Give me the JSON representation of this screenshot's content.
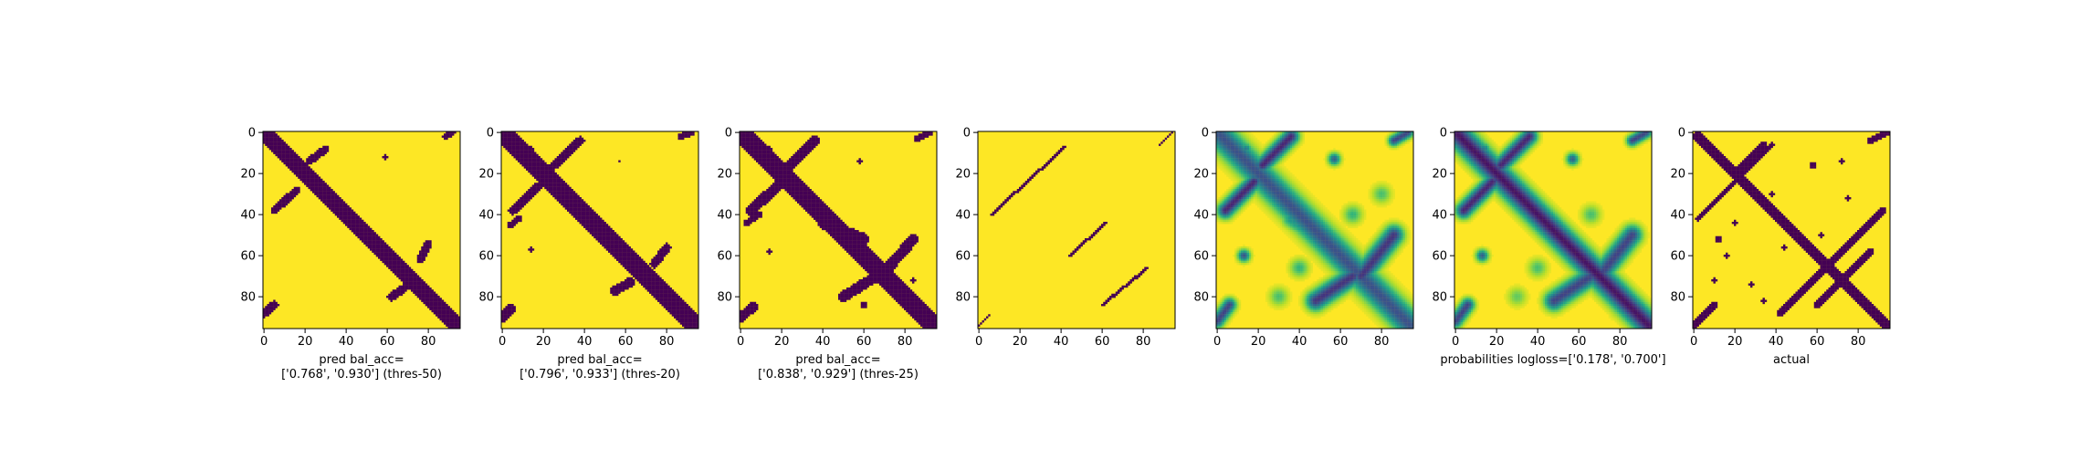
{
  "chart_data": [
    {
      "type": "heatmap",
      "panel": "pred-50",
      "style": "binary",
      "xlabel": "pred bal_acc=\n['0.768', '0.930'] (thres-50)",
      "xticks": [
        0,
        20,
        40,
        60,
        80
      ],
      "yticks": [
        0,
        20,
        40,
        60,
        80
      ],
      "range": [
        0,
        95
      ],
      "features": [
        {
          "kind": "band",
          "x1": 2,
          "y1": 2,
          "x2": 94,
          "y2": 94,
          "w": 3.2,
          "strength": 1
        },
        {
          "kind": "band",
          "x1": 22,
          "y1": 14,
          "x2": 30,
          "y2": 8,
          "w": 1.6,
          "strength": 1
        },
        {
          "kind": "band",
          "x1": 5,
          "y1": 38,
          "x2": 16,
          "y2": 28,
          "w": 1.6,
          "strength": 1
        },
        {
          "kind": "band",
          "x1": 88,
          "y1": 2,
          "x2": 92,
          "y2": 0,
          "w": 1.2,
          "strength": 1
        },
        {
          "kind": "band",
          "x1": 62,
          "y1": 80,
          "x2": 68,
          "y2": 76,
          "w": 1.8,
          "strength": 1
        },
        {
          "kind": "band",
          "x1": 76,
          "y1": 62,
          "x2": 80,
          "y2": 54,
          "w": 1.6,
          "strength": 1
        },
        {
          "kind": "band",
          "x1": 0,
          "y1": 88,
          "x2": 5,
          "y2": 84,
          "w": 1.8,
          "strength": 1
        },
        {
          "kind": "blob",
          "x": 12,
          "y": 8,
          "r": 1.0,
          "strength": 1
        },
        {
          "kind": "blob",
          "x": 59,
          "y": 12,
          "r": 0.9,
          "strength": 1
        }
      ]
    },
    {
      "type": "heatmap",
      "panel": "pred-20",
      "style": "binary",
      "xlabel": "pred bal_acc=\n['0.796', '0.933'] (thres-20)",
      "xticks": [
        0,
        20,
        40,
        60,
        80
      ],
      "yticks": [
        0,
        20,
        40,
        60,
        80
      ],
      "range": [
        0,
        95
      ],
      "features": [
        {
          "kind": "band",
          "x1": 2,
          "y1": 2,
          "x2": 94,
          "y2": 94,
          "w": 3.8,
          "strength": 1
        },
        {
          "kind": "band",
          "x1": 25,
          "y1": 16,
          "x2": 38,
          "y2": 4,
          "w": 1.8,
          "strength": 1
        },
        {
          "kind": "band",
          "x1": 5,
          "y1": 38,
          "x2": 18,
          "y2": 26,
          "w": 1.8,
          "strength": 1
        },
        {
          "kind": "band",
          "x1": 4,
          "y1": 45,
          "x2": 8,
          "y2": 42,
          "w": 1.3,
          "strength": 1
        },
        {
          "kind": "band",
          "x1": 87,
          "y1": 2,
          "x2": 92,
          "y2": 0,
          "w": 1.3,
          "strength": 1
        },
        {
          "kind": "band",
          "x1": 55,
          "y1": 77,
          "x2": 62,
          "y2": 73,
          "w": 1.9,
          "strength": 1
        },
        {
          "kind": "band",
          "x1": 74,
          "y1": 64,
          "x2": 80,
          "y2": 56,
          "w": 1.8,
          "strength": 1
        },
        {
          "kind": "band",
          "x1": 0,
          "y1": 90,
          "x2": 4,
          "y2": 86,
          "w": 1.9,
          "strength": 1
        },
        {
          "kind": "blob",
          "x": 14,
          "y": 8,
          "r": 1.0,
          "strength": 1
        },
        {
          "kind": "blob",
          "x": 57,
          "y": 14,
          "r": 0.8,
          "strength": 1
        },
        {
          "kind": "blob",
          "x": 14,
          "y": 57,
          "r": 1.0,
          "strength": 1
        }
      ]
    },
    {
      "type": "heatmap",
      "panel": "pred-25",
      "style": "binary",
      "xlabel": "pred bal_acc=\n['0.838', '0.929'] (thres-25)",
      "xticks": [
        0,
        20,
        40,
        60,
        80
      ],
      "yticks": [
        0,
        20,
        40,
        60,
        80
      ],
      "range": [
        0,
        95
      ],
      "features": [
        {
          "kind": "band",
          "x1": 2,
          "y1": 2,
          "x2": 94,
          "y2": 94,
          "w": 4.2,
          "strength": 1
        },
        {
          "kind": "band",
          "x1": 24,
          "y1": 16,
          "x2": 36,
          "y2": 4,
          "w": 2.0,
          "strength": 1
        },
        {
          "kind": "band",
          "x1": 5,
          "y1": 38,
          "x2": 18,
          "y2": 26,
          "w": 2.2,
          "strength": 1
        },
        {
          "kind": "band",
          "x1": 3,
          "y1": 44,
          "x2": 9,
          "y2": 40,
          "w": 1.4,
          "strength": 1
        },
        {
          "kind": "band",
          "x1": 86,
          "y1": 3,
          "x2": 92,
          "y2": 0,
          "w": 1.4,
          "strength": 1
        },
        {
          "kind": "band",
          "x1": 50,
          "y1": 80,
          "x2": 66,
          "y2": 70,
          "w": 2.2,
          "strength": 1
        },
        {
          "kind": "band",
          "x1": 70,
          "y1": 68,
          "x2": 84,
          "y2": 52,
          "w": 2.2,
          "strength": 1
        },
        {
          "kind": "band",
          "x1": 40,
          "y1": 44,
          "x2": 60,
          "y2": 52,
          "w": 2.4,
          "strength": 1
        },
        {
          "kind": "band",
          "x1": 0,
          "y1": 90,
          "x2": 6,
          "y2": 85,
          "w": 2.0,
          "strength": 1
        },
        {
          "kind": "blob",
          "x": 14,
          "y": 8,
          "r": 1.1,
          "strength": 1
        },
        {
          "kind": "blob",
          "x": 58,
          "y": 14,
          "r": 1.0,
          "strength": 1
        },
        {
          "kind": "blob",
          "x": 14,
          "y": 58,
          "r": 1.2,
          "strength": 1
        },
        {
          "kind": "blob",
          "x": 60,
          "y": 84,
          "r": 1.4,
          "strength": 1
        },
        {
          "kind": "blob",
          "x": 84,
          "y": 72,
          "r": 1.2,
          "strength": 1
        }
      ]
    },
    {
      "type": "heatmap",
      "panel": "sparse",
      "style": "binary",
      "xlabel": "",
      "xticks": [
        0,
        20,
        40,
        60,
        80
      ],
      "yticks": [
        0,
        20,
        40,
        60,
        80
      ],
      "range": [
        0,
        95
      ],
      "features": [
        {
          "kind": "band",
          "x1": 6,
          "y1": 40,
          "x2": 42,
          "y2": 7,
          "w": 0.6,
          "strength": 1
        },
        {
          "kind": "band",
          "x1": 44,
          "y1": 60,
          "x2": 62,
          "y2": 44,
          "w": 0.6,
          "strength": 1
        },
        {
          "kind": "band",
          "x1": 60,
          "y1": 84,
          "x2": 82,
          "y2": 66,
          "w": 0.6,
          "strength": 1
        },
        {
          "kind": "band",
          "x1": 0,
          "y1": 94,
          "x2": 5,
          "y2": 89,
          "w": 0.6,
          "strength": 1
        },
        {
          "kind": "band",
          "x1": 88,
          "y1": 6,
          "x2": 94,
          "y2": 0,
          "w": 0.6,
          "strength": 1
        }
      ]
    },
    {
      "type": "heatmap",
      "panel": "prob-a",
      "style": "continuous",
      "xlabel": "",
      "xticks": [
        0,
        20,
        40,
        60,
        80
      ],
      "yticks": [
        0,
        20,
        40,
        60,
        80
      ],
      "range": [
        0,
        95
      ],
      "features": [
        {
          "kind": "band",
          "x1": 1,
          "y1": 1,
          "x2": 94,
          "y2": 94,
          "w": 4.5,
          "strength": 0.75
        },
        {
          "kind": "band",
          "x1": 22,
          "y1": 16,
          "x2": 36,
          "y2": 2,
          "w": 2.6,
          "strength": 0.9
        },
        {
          "kind": "band",
          "x1": 4,
          "y1": 38,
          "x2": 18,
          "y2": 24,
          "w": 2.6,
          "strength": 0.9
        },
        {
          "kind": "band",
          "x1": 86,
          "y1": 4,
          "x2": 93,
          "y2": 0,
          "w": 1.8,
          "strength": 0.8
        },
        {
          "kind": "band",
          "x1": 48,
          "y1": 82,
          "x2": 66,
          "y2": 70,
          "w": 3.2,
          "strength": 0.85
        },
        {
          "kind": "band",
          "x1": 70,
          "y1": 70,
          "x2": 86,
          "y2": 50,
          "w": 3.2,
          "strength": 0.85
        },
        {
          "kind": "band",
          "x1": 0,
          "y1": 92,
          "x2": 6,
          "y2": 84,
          "w": 2.2,
          "strength": 0.8
        },
        {
          "kind": "band",
          "x1": 36,
          "y1": 42,
          "x2": 56,
          "y2": 56,
          "w": 3.0,
          "strength": 0.5
        },
        {
          "kind": "blob",
          "x": 13,
          "y": 60,
          "r": 2.0,
          "strength": 0.75
        },
        {
          "kind": "blob",
          "x": 57,
          "y": 13,
          "r": 2.0,
          "strength": 0.7
        },
        {
          "kind": "blob",
          "x": 14,
          "y": 8,
          "r": 2.0,
          "strength": 0.6
        },
        {
          "kind": "blob",
          "x": 40,
          "y": 66,
          "r": 3.0,
          "strength": 0.35
        },
        {
          "kind": "blob",
          "x": 66,
          "y": 40,
          "r": 3.0,
          "strength": 0.35
        },
        {
          "kind": "blob",
          "x": 30,
          "y": 80,
          "r": 3.0,
          "strength": 0.3
        },
        {
          "kind": "blob",
          "x": 80,
          "y": 30,
          "r": 3.0,
          "strength": 0.3
        },
        {
          "kind": "blob",
          "x": 80,
          "y": 86,
          "r": 3.0,
          "strength": 0.35
        }
      ]
    },
    {
      "type": "heatmap",
      "panel": "prob-b",
      "style": "continuous",
      "xlabel": "probabilities logloss=['0.178', '0.700']",
      "xticks": [
        0,
        20,
        40,
        60,
        80
      ],
      "yticks": [
        0,
        20,
        40,
        60,
        80
      ],
      "range": [
        0,
        95
      ],
      "features": [
        {
          "kind": "band",
          "x1": 1,
          "y1": 1,
          "x2": 94,
          "y2": 94,
          "w": 4.0,
          "strength": 0.95
        },
        {
          "kind": "band",
          "x1": 22,
          "y1": 16,
          "x2": 36,
          "y2": 2,
          "w": 2.6,
          "strength": 0.9
        },
        {
          "kind": "band",
          "x1": 4,
          "y1": 38,
          "x2": 18,
          "y2": 24,
          "w": 2.6,
          "strength": 0.9
        },
        {
          "kind": "band",
          "x1": 86,
          "y1": 4,
          "x2": 93,
          "y2": 0,
          "w": 1.8,
          "strength": 0.8
        },
        {
          "kind": "band",
          "x1": 48,
          "y1": 82,
          "x2": 66,
          "y2": 70,
          "w": 3.2,
          "strength": 0.8
        },
        {
          "kind": "band",
          "x1": 70,
          "y1": 70,
          "x2": 86,
          "y2": 50,
          "w": 3.2,
          "strength": 0.8
        },
        {
          "kind": "band",
          "x1": 0,
          "y1": 92,
          "x2": 6,
          "y2": 84,
          "w": 2.2,
          "strength": 0.8
        },
        {
          "kind": "blob",
          "x": 13,
          "y": 60,
          "r": 2.0,
          "strength": 0.7
        },
        {
          "kind": "blob",
          "x": 57,
          "y": 13,
          "r": 2.0,
          "strength": 0.7
        },
        {
          "kind": "blob",
          "x": 14,
          "y": 8,
          "r": 2.0,
          "strength": 0.6
        },
        {
          "kind": "blob",
          "x": 40,
          "y": 66,
          "r": 3.0,
          "strength": 0.3
        },
        {
          "kind": "blob",
          "x": 66,
          "y": 40,
          "r": 3.0,
          "strength": 0.3
        },
        {
          "kind": "blob",
          "x": 30,
          "y": 80,
          "r": 3.0,
          "strength": 0.25
        },
        {
          "kind": "blob",
          "x": 80,
          "y": 86,
          "r": 3.0,
          "strength": 0.3
        }
      ]
    },
    {
      "type": "heatmap",
      "panel": "actual",
      "style": "binary",
      "xlabel": "actual",
      "xticks": [
        0,
        20,
        40,
        60,
        80
      ],
      "yticks": [
        0,
        20,
        40,
        60,
        80
      ],
      "range": [
        0,
        95
      ],
      "features": [
        {
          "kind": "band",
          "x1": 2,
          "y1": 2,
          "x2": 94,
          "y2": 94,
          "w": 2.2,
          "strength": 1
        },
        {
          "kind": "band",
          "x1": 20,
          "y1": 20,
          "x2": 34,
          "y2": 6,
          "w": 1.4,
          "strength": 1
        },
        {
          "kind": "band",
          "x1": 2,
          "y1": 42,
          "x2": 38,
          "y2": 6,
          "w": 1.2,
          "strength": 1
        },
        {
          "kind": "band",
          "x1": 42,
          "y1": 88,
          "x2": 92,
          "y2": 38,
          "w": 1.3,
          "strength": 1
        },
        {
          "kind": "band",
          "x1": 60,
          "y1": 84,
          "x2": 86,
          "y2": 58,
          "w": 1.4,
          "strength": 1
        },
        {
          "kind": "band",
          "x1": 0,
          "y1": 94,
          "x2": 10,
          "y2": 84,
          "w": 1.4,
          "strength": 1
        },
        {
          "kind": "band",
          "x1": 86,
          "y1": 4,
          "x2": 94,
          "y2": 0,
          "w": 1.4,
          "strength": 1
        },
        {
          "kind": "blob",
          "x": 12,
          "y": 52,
          "r": 1.4,
          "strength": 1
        },
        {
          "kind": "blob",
          "x": 20,
          "y": 44,
          "r": 1.0,
          "strength": 1
        },
        {
          "kind": "blob",
          "x": 58,
          "y": 16,
          "r": 1.5,
          "strength": 1
        },
        {
          "kind": "blob",
          "x": 72,
          "y": 14,
          "r": 1.1,
          "strength": 1
        },
        {
          "kind": "blob",
          "x": 75,
          "y": 32,
          "r": 1.2,
          "strength": 1
        },
        {
          "kind": "blob",
          "x": 62,
          "y": 50,
          "r": 1.1,
          "strength": 1
        },
        {
          "kind": "blob",
          "x": 44,
          "y": 56,
          "r": 1.0,
          "strength": 1
        },
        {
          "kind": "blob",
          "x": 38,
          "y": 30,
          "r": 1.0,
          "strength": 1
        },
        {
          "kind": "blob",
          "x": 10,
          "y": 72,
          "r": 1.0,
          "strength": 1
        },
        {
          "kind": "blob",
          "x": 28,
          "y": 74,
          "r": 1.2,
          "strength": 1
        },
        {
          "kind": "blob",
          "x": 34,
          "y": 82,
          "r": 1.1,
          "strength": 1
        },
        {
          "kind": "blob",
          "x": 16,
          "y": 60,
          "r": 0.9,
          "strength": 1
        }
      ]
    }
  ],
  "colors": {
    "low": "#440154",
    "high": "#fde725",
    "viridis": [
      "#440154",
      "#482878",
      "#3e4989",
      "#31688e",
      "#26828e",
      "#1f9e89",
      "#35b779",
      "#6ece58",
      "#b5de2b",
      "#fde725"
    ]
  }
}
